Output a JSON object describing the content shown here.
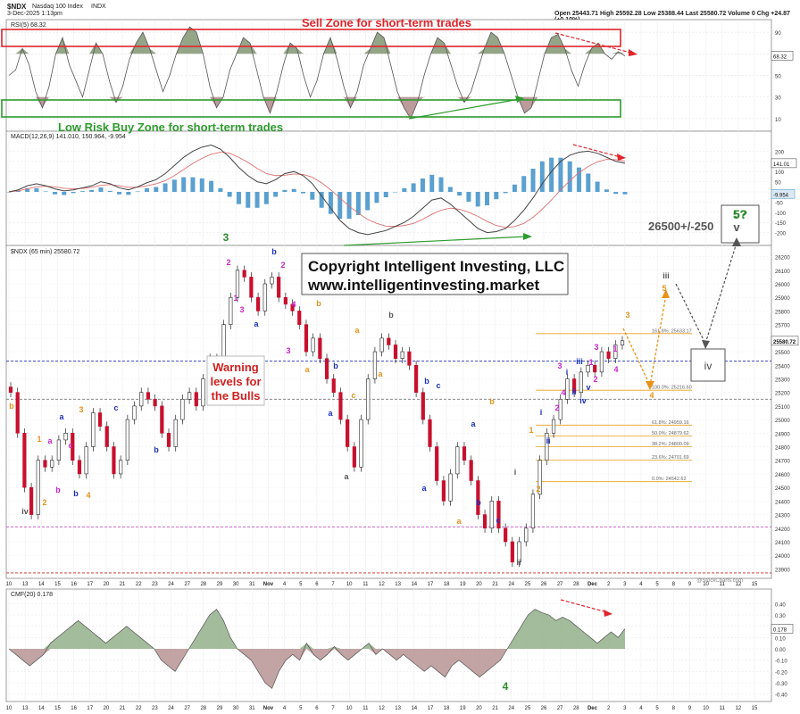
{
  "header": {
    "symbol": "$NDX",
    "name": "Nasdaq 100 Index",
    "exchange": "INDX",
    "date": "3-Dec-2025 1:13pm",
    "ohlc": "Open 25443.71  High 25592.28  Low 25388.44  Last 25580.72  Volume 0  Chg +24.87 (+0.10%)",
    "brand": "@StockCharts.com"
  },
  "annotations": {
    "sell_zone": "Sell Zone for short-term trades",
    "buy_zone": "Low Risk Buy Zone for short-term trades",
    "warning": [
      "Warning",
      "levels for",
      "the Bulls"
    ],
    "copyright1": "Copyright Intelligent Investing, LLC",
    "copyright2": "www.intelligentinvesting.market",
    "target": "26500+/-250",
    "target_wave_top": "5?",
    "target_wave_bottom": "v",
    "iv_box": "iv"
  },
  "colors": {
    "bull": "#ffffff",
    "bear": "#c8102e",
    "sell_zone": "#e0242c",
    "buy_zone": "#2e9b2e",
    "rsi_fill": "#7a8f6a",
    "macd_hist": "#5aa0d0",
    "fib": "#e8a020",
    "blue_dash": "#1a2fbf",
    "magenta_dash": "#c030c0",
    "wave_green": "#2e8b2e",
    "wave_orange": "#e8921a",
    "wave_blue": "#1a2fbf",
    "wave_magenta": "#cc22cc",
    "wave_gray": "#555555"
  },
  "chart_data": [
    {
      "type": "line",
      "title": "RSI(5) 68.32",
      "series": [
        {
          "name": "RSI(5)",
          "last": 68.32
        }
      ],
      "ylim": [
        0,
        100
      ],
      "ticks": [
        10,
        30,
        50,
        70,
        90
      ],
      "values": [
        50,
        55,
        75,
        60,
        35,
        20,
        40,
        70,
        85,
        60,
        45,
        30,
        55,
        80,
        70,
        45,
        25,
        40,
        65,
        80,
        90,
        75,
        55,
        35,
        50,
        70,
        85,
        95,
        90,
        70,
        40,
        20,
        30,
        55,
        70,
        85,
        80,
        55,
        30,
        15,
        35,
        60,
        80,
        75,
        50,
        30,
        45,
        70,
        85,
        65,
        40,
        20,
        35,
        60,
        75,
        90,
        85,
        60,
        35,
        20,
        10,
        25,
        50,
        70,
        85,
        80,
        60,
        40,
        25,
        35,
        55,
        75,
        90,
        85,
        70,
        50,
        30,
        15,
        20,
        45,
        70,
        85,
        88,
        75,
        55,
        40,
        60,
        75,
        80,
        70,
        65,
        72,
        68
      ]
    },
    {
      "type": "line",
      "title": "MACD(12,26,9) 141.010, 150.964, -9.954",
      "series": [
        {
          "name": "MACD",
          "last": 141.01
        },
        {
          "name": "Signal",
          "last": 150.964
        },
        {
          "name": "Histogram",
          "last": -9.954
        }
      ],
      "ylim": [
        -250,
        250
      ],
      "ticks": [
        -200,
        -150,
        -100,
        -50,
        0,
        50,
        100,
        150,
        200
      ],
      "macd": [
        0,
        10,
        30,
        40,
        30,
        15,
        5,
        10,
        20,
        30,
        50,
        40,
        20,
        10,
        25,
        45,
        60,
        90,
        130,
        170,
        200,
        220,
        230,
        210,
        170,
        120,
        80,
        50,
        40,
        60,
        90,
        100,
        80,
        40,
        -20,
        -80,
        -140,
        -180,
        -200,
        -210,
        -200,
        -190,
        -170,
        -150,
        -120,
        -80,
        -40,
        -30,
        -60,
        -100,
        -140,
        -180,
        -200,
        -195,
        -180,
        -140,
        -90,
        -30,
        40,
        100,
        150,
        180,
        195,
        200,
        190,
        170,
        150,
        141
      ],
      "signal": [
        0,
        5,
        15,
        25,
        28,
        25,
        18,
        15,
        17,
        22,
        32,
        36,
        30,
        22,
        23,
        30,
        40,
        55,
        80,
        110,
        140,
        165,
        185,
        195,
        190,
        170,
        145,
        115,
        90,
        80,
        82,
        88,
        86,
        72,
        45,
        10,
        -30,
        -70,
        -105,
        -135,
        -155,
        -168,
        -170,
        -165,
        -155,
        -135,
        -110,
        -90,
        -80,
        -85,
        -100,
        -120,
        -145,
        -165,
        -175,
        -170,
        -155,
        -125,
        -85,
        -40,
        10,
        55,
        95,
        125,
        148,
        160,
        158,
        151
      ]
    },
    {
      "type": "candlestick",
      "title": "$NDX (65 min) 25580.72",
      "ylim": [
        23850,
        26250
      ],
      "ticks": [
        23900,
        24000,
        24100,
        24200,
        24300,
        24400,
        24500,
        24600,
        24700,
        24800,
        24900,
        25000,
        25100,
        25200,
        25300,
        25400,
        25500,
        25600,
        25700,
        25800,
        25900,
        26000,
        26100,
        26200
      ],
      "x_labels": [
        "10",
        "13",
        "14",
        "15",
        "16",
        "17",
        "20",
        "21",
        "22",
        "23",
        "24",
        "27",
        "28",
        "29",
        "30",
        "31",
        "Nov",
        "4",
        "5",
        "6",
        "7",
        "10",
        "11",
        "12",
        "13",
        "14",
        "17",
        "18",
        "19",
        "20",
        "21",
        "24",
        "25",
        "26",
        "27",
        "28",
        "Dec",
        "2",
        "3",
        "4",
        "5",
        "8",
        "9",
        "10",
        "11",
        "12",
        "15"
      ],
      "closes": [
        25200,
        24900,
        24500,
        24300,
        24700,
        24650,
        24700,
        24850,
        24900,
        24700,
        24600,
        24800,
        25050,
        24950,
        24800,
        24600,
        24700,
        25000,
        25100,
        25200,
        25150,
        25100,
        24900,
        24800,
        25000,
        25150,
        25200,
        25100,
        25300,
        25450,
        25400,
        25700,
        25900,
        26100,
        26050,
        25900,
        25800,
        26000,
        26050,
        25900,
        25850,
        25800,
        25700,
        25500,
        25600,
        25450,
        25300,
        25200,
        25000,
        24800,
        24650,
        25000,
        25300,
        25500,
        25600,
        25550,
        25450,
        25500,
        25400,
        25200,
        25000,
        24800,
        24550,
        24400,
        24600,
        24800,
        24700,
        24550,
        24300,
        24200,
        24400,
        24200,
        24100,
        23950,
        24100,
        24200,
        24450,
        24700,
        24900,
        25000,
        25150,
        25300,
        25200,
        25350,
        25400,
        25350,
        25500,
        25450,
        25550,
        25580.72
      ],
      "fib_levels": [
        {
          "label": "161.8%: 25633.17",
          "value": 25633.17
        },
        {
          "label": "100.0%: 25216.60",
          "value": 25216.6
        },
        {
          "label": "61.8%: 24959.16",
          "value": 24959.16
        },
        {
          "label": "50.0%: 24879.62",
          "value": 24879.62
        },
        {
          "label": "38.2%: 24800.09",
          "value": 24800.09
        },
        {
          "label": "23.6%: 24701.69",
          "value": 24701.69
        },
        {
          "label": "0.0%: 24542.62",
          "value": 24542.62
        }
      ],
      "blue_level": 25430,
      "gray_level": 25150,
      "magenta_level": 24210,
      "red_level": 23870,
      "last_label": "25580.72"
    },
    {
      "type": "area",
      "title": "CMF(20) 0.178",
      "series": [
        {
          "name": "CMF(20)",
          "last": 0.178
        }
      ],
      "ylim": [
        -0.45,
        0.45
      ],
      "ticks": [
        -0.4,
        -0.3,
        -0.2,
        -0.1,
        0.0,
        0.1,
        0.2,
        0.3,
        0.4
      ],
      "values": [
        0,
        -0.05,
        -0.1,
        -0.15,
        -0.1,
        -0.05,
        0.05,
        0.1,
        0.15,
        0.2,
        0.25,
        0.2,
        0.15,
        0.1,
        0.05,
        0.1,
        0.15,
        0.2,
        0.15,
        0.1,
        0.05,
        0.0,
        -0.1,
        -0.15,
        -0.2,
        -0.1,
        0,
        0.1,
        0.2,
        0.3,
        0.35,
        0.25,
        0.1,
        0,
        -0.05,
        -0.1,
        -0.2,
        -0.3,
        -0.35,
        -0.2,
        -0.1,
        -0.05,
        -0.1,
        0.05,
        -0.05,
        -0.1,
        -0.05,
        0.02,
        -0.05,
        -0.1,
        -0.05,
        0,
        0.05,
        -0.05,
        0,
        -0.05,
        -0.1,
        -0.05,
        -0.1,
        -0.15,
        -0.2,
        -0.15,
        -0.2,
        -0.25,
        -0.15,
        -0.1,
        -0.15,
        -0.2,
        -0.25,
        -0.2,
        -0.15,
        -0.1,
        0,
        0.1,
        0.2,
        0.3,
        0.35,
        0.32,
        0.3,
        0.25,
        0.28,
        0.25,
        0.2,
        0.15,
        0.1,
        0.05,
        0.1,
        0.15,
        0.1,
        0.178
      ]
    }
  ],
  "wave_labels": [
    {
      "text": "3",
      "color": "wave_green",
      "x": 253,
      "y": 270
    },
    {
      "text": "4",
      "color": "wave_green",
      "x": 566,
      "y": 773
    },
    {
      "text": "5?",
      "color": "wave_green",
      "x": 829,
      "y": 244
    },
    {
      "text": "iv",
      "color": "wave_gray",
      "x": 28,
      "y": 576
    },
    {
      "text": "2",
      "color": "wave_orange",
      "x": 50,
      "y": 566
    },
    {
      "text": "b",
      "color": "wave_orange",
      "x": 13,
      "y": 458
    },
    {
      "text": "1",
      "color": "wave_orange",
      "x": 44,
      "y": 495
    },
    {
      "text": "a",
      "color": "wave_magenta",
      "x": 56,
      "y": 497
    },
    {
      "text": "b",
      "color": "wave_magenta",
      "x": 65,
      "y": 552
    },
    {
      "text": "c",
      "color": "wave_magenta",
      "x": 79,
      "y": 502
    },
    {
      "text": "a",
      "color": "wave_blue",
      "x": 69,
      "y": 470
    },
    {
      "text": "b",
      "color": "wave_blue",
      "x": 85,
      "y": 556
    },
    {
      "text": "c",
      "color": "wave_blue",
      "x": 130,
      "y": 460
    },
    {
      "text": "3",
      "color": "wave_orange",
      "x": 91,
      "y": 462
    },
    {
      "text": "4",
      "color": "wave_orange",
      "x": 99,
      "y": 558
    },
    {
      "text": "b",
      "color": "wave_blue",
      "x": 175,
      "y": 507
    },
    {
      "text": "2",
      "color": "wave_magenta",
      "x": 256,
      "y": 297
    },
    {
      "text": "1",
      "color": "wave_magenta",
      "x": 264,
      "y": 337
    },
    {
      "text": "3",
      "color": "wave_magenta",
      "x": 271,
      "y": 350
    },
    {
      "text": "a",
      "color": "wave_blue",
      "x": 287,
      "y": 366
    },
    {
      "text": "b",
      "color": "wave_blue",
      "x": 307,
      "y": 285
    },
    {
      "text": "2",
      "color": "wave_magenta",
      "x": 317,
      "y": 300
    },
    {
      "text": "4",
      "color": "wave_magenta",
      "x": 329,
      "y": 344
    },
    {
      "text": "3",
      "color": "wave_magenta",
      "x": 323,
      "y": 396
    },
    {
      "text": "b",
      "color": "wave_orange",
      "x": 357,
      "y": 343
    },
    {
      "text": "a",
      "color": "wave_orange",
      "x": 344,
      "y": 417
    },
    {
      "text": "b",
      "color": "wave_blue",
      "x": 376,
      "y": 413
    },
    {
      "text": "a",
      "color": "wave_blue",
      "x": 370,
      "y": 466
    },
    {
      "text": "a",
      "color": "wave_gray",
      "x": 388,
      "y": 537
    },
    {
      "text": "a",
      "color": "wave_orange",
      "x": 400,
      "y": 373
    },
    {
      "text": "c",
      "color": "wave_orange",
      "x": 396,
      "y": 446
    },
    {
      "text": "b",
      "color": "wave_gray",
      "x": 438,
      "y": 356
    },
    {
      "text": "a",
      "color": "wave_orange",
      "x": 426,
      "y": 422
    },
    {
      "text": "b",
      "color": "wave_blue",
      "x": 478,
      "y": 430
    },
    {
      "text": "c",
      "color": "wave_blue",
      "x": 491,
      "y": 435
    },
    {
      "text": "a",
      "color": "wave_blue",
      "x": 475,
      "y": 550
    },
    {
      "text": "a",
      "color": "wave_orange",
      "x": 514,
      "y": 587
    },
    {
      "text": "a",
      "color": "wave_blue",
      "x": 530,
      "y": 478
    },
    {
      "text": "b",
      "color": "wave_blue",
      "x": 536,
      "y": 566
    },
    {
      "text": "c",
      "color": "wave_blue",
      "x": 558,
      "y": 586
    },
    {
      "text": "b",
      "color": "wave_orange",
      "x": 551,
      "y": 453
    },
    {
      "text": "i",
      "color": "wave_gray",
      "x": 577,
      "y": 532
    },
    {
      "text": "ii",
      "color": "wave_gray",
      "x": 581,
      "y": 633
    },
    {
      "text": "1",
      "color": "wave_orange",
      "x": 595,
      "y": 485
    },
    {
      "text": "2",
      "color": "wave_orange",
      "x": 603,
      "y": 551
    },
    {
      "text": "i",
      "color": "wave_blue",
      "x": 606,
      "y": 465
    },
    {
      "text": "ii",
      "color": "wave_blue",
      "x": 614,
      "y": 497
    },
    {
      "text": "2",
      "color": "wave_magenta",
      "x": 624,
      "y": 460
    },
    {
      "text": "3",
      "color": "wave_magenta",
      "x": 627,
      "y": 413
    },
    {
      "text": "4",
      "color": "wave_magenta",
      "x": 631,
      "y": 443
    },
    {
      "text": "i",
      "color": "wave_blue",
      "x": 635,
      "y": 420
    },
    {
      "text": "ii",
      "color": "wave_blue",
      "x": 643,
      "y": 442
    },
    {
      "text": "iii",
      "color": "wave_blue",
      "x": 649,
      "y": 408
    },
    {
      "text": "iv",
      "color": "wave_blue",
      "x": 653,
      "y": 452
    },
    {
      "text": "1",
      "color": "wave_magenta",
      "x": 662,
      "y": 409
    },
    {
      "text": "v",
      "color": "wave_blue",
      "x": 659,
      "y": 437
    },
    {
      "text": "2",
      "color": "wave_magenta",
      "x": 667,
      "y": 428
    },
    {
      "text": "3",
      "color": "wave_magenta",
      "x": 668,
      "y": 392
    },
    {
      "text": "1",
      "color": "wave_magenta",
      "x": 689,
      "y": 394
    },
    {
      "text": "4",
      "color": "wave_magenta",
      "x": 690,
      "y": 417
    },
    {
      "text": "3",
      "color": "wave_orange",
      "x": 703,
      "y": 356
    },
    {
      "text": "4",
      "color": "wave_orange",
      "x": 730,
      "y": 446
    },
    {
      "text": "iii",
      "color": "wave_gray",
      "x": 746,
      "y": 312
    },
    {
      "text": "5",
      "color": "wave_orange",
      "x": 744,
      "y": 326
    }
  ]
}
